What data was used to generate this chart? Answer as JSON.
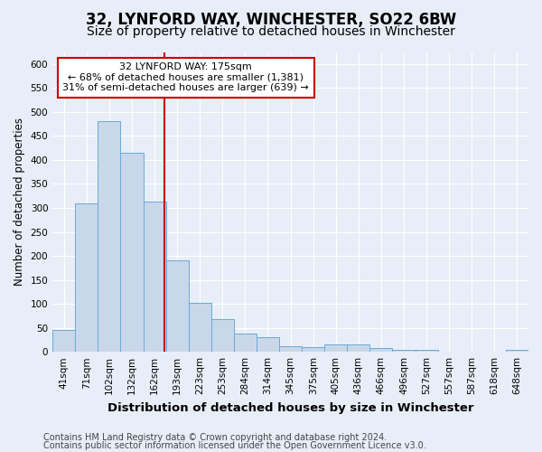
{
  "title": "32, LYNFORD WAY, WINCHESTER, SO22 6BW",
  "subtitle": "Size of property relative to detached houses in Winchester",
  "xlabel": "Distribution of detached houses by size in Winchester",
  "ylabel": "Number of detached properties",
  "categories": [
    "41sqm",
    "71sqm",
    "102sqm",
    "132sqm",
    "162sqm",
    "193sqm",
    "223sqm",
    "253sqm",
    "284sqm",
    "314sqm",
    "345sqm",
    "375sqm",
    "405sqm",
    "436sqm",
    "466sqm",
    "496sqm",
    "527sqm",
    "557sqm",
    "587sqm",
    "618sqm",
    "648sqm"
  ],
  "values": [
    45,
    310,
    480,
    415,
    313,
    190,
    103,
    68,
    38,
    30,
    12,
    10,
    15,
    15,
    8,
    5,
    4,
    1,
    1,
    1,
    5
  ],
  "bar_color": "#c8d8ea",
  "bar_edge_color": "#6aaad4",
  "vline_color": "#cc0000",
  "vline_pos": 4.42,
  "annotation_line1": "32 LYNFORD WAY: 175sqm",
  "annotation_line2": "← 68% of detached houses are smaller (1,381)",
  "annotation_line3": "31% of semi-detached houses are larger (639) →",
  "annotation_box_color": "white",
  "annotation_box_edge_color": "#cc0000",
  "ylim": [
    0,
    625
  ],
  "yticks": [
    0,
    50,
    100,
    150,
    200,
    250,
    300,
    350,
    400,
    450,
    500,
    550,
    600
  ],
  "footer1": "Contains HM Land Registry data © Crown copyright and database right 2024.",
  "footer2": "Contains public sector information licensed under the Open Government Licence v3.0.",
  "bg_color": "#e8eef8",
  "fig_color": "#e8eef8",
  "grid_color": "#ffffff",
  "title_fontsize": 12,
  "subtitle_fontsize": 10,
  "xlabel_fontsize": 9.5,
  "ylabel_fontsize": 8.5,
  "tick_fontsize": 7.5,
  "annotation_fontsize": 8,
  "footer_fontsize": 7
}
